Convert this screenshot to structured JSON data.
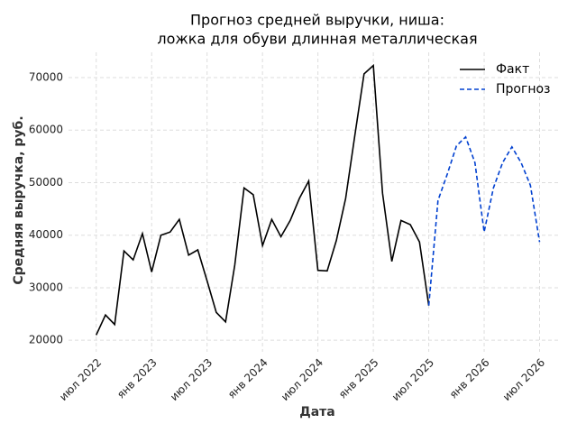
{
  "chart_data": {
    "type": "line",
    "title": [
      "Прогноз средней выручки, ниша:",
      "ложка для обуви длинная металлическая"
    ],
    "x_label": "Дата",
    "y_label": "Средняя выручка, руб.",
    "x": [
      "2022-07",
      "2022-08",
      "2022-09",
      "2022-10",
      "2022-11",
      "2022-12",
      "2023-01",
      "2023-02",
      "2023-03",
      "2023-04",
      "2023-05",
      "2023-06",
      "2023-07",
      "2023-08",
      "2023-09",
      "2023-10",
      "2023-11",
      "2023-12",
      "2024-01",
      "2024-02",
      "2024-03",
      "2024-04",
      "2024-05",
      "2024-06",
      "2024-07",
      "2024-08",
      "2024-09",
      "2024-10",
      "2024-11",
      "2024-12",
      "2025-01",
      "2025-02",
      "2025-03",
      "2025-04",
      "2025-05",
      "2025-06",
      "2025-07",
      "2025-08",
      "2025-09",
      "2025-10",
      "2025-11",
      "2025-12",
      "2026-01",
      "2026-02",
      "2026-03",
      "2026-04",
      "2026-05",
      "2026-06",
      "2026-07"
    ],
    "series": [
      {
        "name": "Факт",
        "color": "#000000",
        "dashed": false,
        "values": [
          21000,
          24800,
          23000,
          37000,
          35300,
          40300,
          33000,
          40000,
          40600,
          43000,
          36200,
          37200,
          31300,
          25300,
          23500,
          34300,
          49000,
          47700,
          38000,
          43000,
          39700,
          42800,
          47000,
          50300,
          33300,
          33200,
          39000,
          47000,
          59000,
          70700,
          72300,
          48000,
          35000,
          42800,
          42000,
          38700,
          26600,
          null,
          null,
          null,
          null,
          null,
          null,
          null,
          null,
          null,
          null,
          null,
          null
        ]
      },
      {
        "name": "Прогноз",
        "color": "#0040d0",
        "dashed": true,
        "values": [
          null,
          null,
          null,
          null,
          null,
          null,
          null,
          null,
          null,
          null,
          null,
          null,
          null,
          null,
          null,
          null,
          null,
          null,
          null,
          null,
          null,
          null,
          null,
          null,
          null,
          null,
          null,
          null,
          null,
          null,
          null,
          null,
          null,
          null,
          null,
          null,
          26600,
          46600,
          51600,
          57000,
          58700,
          53800,
          40600,
          49000,
          53800,
          56800,
          53800,
          49500,
          38700
        ]
      }
    ],
    "xlim": [
      "2022-04",
      "2026-09"
    ],
    "xticks": [
      {
        "value": "2022-07",
        "label": "июл 2022"
      },
      {
        "value": "2023-01",
        "label": "янв 2023"
      },
      {
        "value": "2023-07",
        "label": "июл 2023"
      },
      {
        "value": "2024-01",
        "label": "янв 2024"
      },
      {
        "value": "2024-07",
        "label": "июл 2024"
      },
      {
        "value": "2025-01",
        "label": "янв 2025"
      },
      {
        "value": "2025-07",
        "label": "июл 2025"
      },
      {
        "value": "2026-01",
        "label": "янв 2026"
      },
      {
        "value": "2026-07",
        "label": "июл 2026"
      }
    ],
    "ylim": [
      17800,
      74800
    ],
    "yticks": [
      20000,
      30000,
      40000,
      50000,
      60000,
      70000
    ],
    "grid": true,
    "legend": "upper right"
  }
}
